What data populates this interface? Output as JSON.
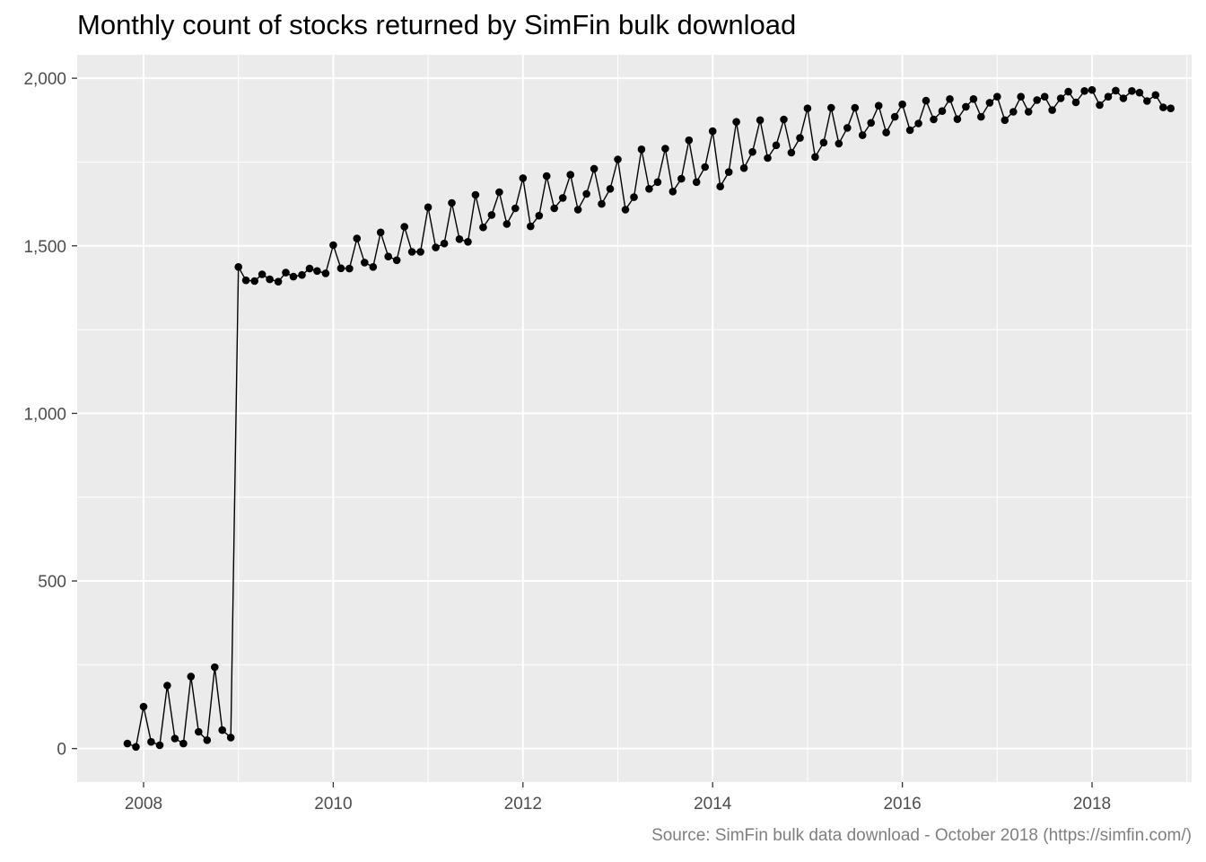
{
  "chart_data": {
    "type": "line",
    "title": "Monthly count of stocks returned by SimFin bulk download",
    "caption": "Source: SimFin bulk data download - October 2018 (https://simfin.com/)",
    "xlabel": "",
    "ylabel": "",
    "xlim": [
      2007.3,
      2019.05
    ],
    "ylim": [
      -100,
      2070
    ],
    "x_ticks": [
      {
        "value": 2008,
        "label": "2008"
      },
      {
        "value": 2010,
        "label": "2010"
      },
      {
        "value": 2012,
        "label": "2012"
      },
      {
        "value": 2014,
        "label": "2014"
      },
      {
        "value": 2016,
        "label": "2016"
      },
      {
        "value": 2018,
        "label": "2018"
      }
    ],
    "y_ticks": [
      {
        "value": 0,
        "label": "0"
      },
      {
        "value": 500,
        "label": "500"
      },
      {
        "value": 1000,
        "label": "1,000"
      },
      {
        "value": 1500,
        "label": "1,500"
      },
      {
        "value": 2000,
        "label": "2,000"
      }
    ],
    "grid": true,
    "series": [
      {
        "points": [
          [
            2007.83,
            15
          ],
          [
            2007.92,
            5
          ],
          [
            2008.0,
            125
          ],
          [
            2008.08,
            20
          ],
          [
            2008.17,
            10
          ],
          [
            2008.25,
            188
          ],
          [
            2008.33,
            30
          ],
          [
            2008.42,
            15
          ],
          [
            2008.5,
            215
          ],
          [
            2008.58,
            50
          ],
          [
            2008.67,
            25
          ],
          [
            2008.75,
            243
          ],
          [
            2008.83,
            55
          ],
          [
            2008.92,
            33
          ],
          [
            2009.0,
            1437
          ],
          [
            2009.08,
            1397
          ],
          [
            2009.17,
            1395
          ],
          [
            2009.25,
            1415
          ],
          [
            2009.33,
            1400
          ],
          [
            2009.42,
            1393
          ],
          [
            2009.5,
            1420
          ],
          [
            2009.58,
            1408
          ],
          [
            2009.67,
            1413
          ],
          [
            2009.75,
            1432
          ],
          [
            2009.83,
            1425
          ],
          [
            2009.92,
            1418
          ],
          [
            2010.0,
            1502
          ],
          [
            2010.08,
            1433
          ],
          [
            2010.17,
            1432
          ],
          [
            2010.25,
            1522
          ],
          [
            2010.33,
            1450
          ],
          [
            2010.42,
            1437
          ],
          [
            2010.5,
            1540
          ],
          [
            2010.58,
            1468
          ],
          [
            2010.67,
            1457
          ],
          [
            2010.75,
            1557
          ],
          [
            2010.83,
            1482
          ],
          [
            2010.92,
            1482
          ],
          [
            2011.0,
            1615
          ],
          [
            2011.08,
            1495
          ],
          [
            2011.17,
            1507
          ],
          [
            2011.25,
            1628
          ],
          [
            2011.33,
            1520
          ],
          [
            2011.42,
            1512
          ],
          [
            2011.5,
            1652
          ],
          [
            2011.58,
            1555
          ],
          [
            2011.67,
            1592
          ],
          [
            2011.75,
            1660
          ],
          [
            2011.83,
            1565
          ],
          [
            2011.92,
            1612
          ],
          [
            2012.0,
            1702
          ],
          [
            2012.08,
            1558
          ],
          [
            2012.17,
            1590
          ],
          [
            2012.25,
            1708
          ],
          [
            2012.33,
            1612
          ],
          [
            2012.42,
            1643
          ],
          [
            2012.5,
            1712
          ],
          [
            2012.58,
            1608
          ],
          [
            2012.67,
            1655
          ],
          [
            2012.75,
            1730
          ],
          [
            2012.83,
            1625
          ],
          [
            2012.92,
            1670
          ],
          [
            2013.0,
            1758
          ],
          [
            2013.08,
            1608
          ],
          [
            2013.17,
            1645
          ],
          [
            2013.25,
            1788
          ],
          [
            2013.33,
            1670
          ],
          [
            2013.42,
            1690
          ],
          [
            2013.5,
            1790
          ],
          [
            2013.58,
            1662
          ],
          [
            2013.67,
            1700
          ],
          [
            2013.75,
            1815
          ],
          [
            2013.83,
            1690
          ],
          [
            2013.92,
            1735
          ],
          [
            2014.0,
            1842
          ],
          [
            2014.08,
            1677
          ],
          [
            2014.17,
            1720
          ],
          [
            2014.25,
            1870
          ],
          [
            2014.33,
            1732
          ],
          [
            2014.42,
            1780
          ],
          [
            2014.5,
            1875
          ],
          [
            2014.58,
            1762
          ],
          [
            2014.67,
            1800
          ],
          [
            2014.75,
            1877
          ],
          [
            2014.83,
            1778
          ],
          [
            2014.92,
            1822
          ],
          [
            2015.0,
            1910
          ],
          [
            2015.08,
            1765
          ],
          [
            2015.17,
            1808
          ],
          [
            2015.25,
            1912
          ],
          [
            2015.33,
            1805
          ],
          [
            2015.42,
            1852
          ],
          [
            2015.5,
            1912
          ],
          [
            2015.58,
            1830
          ],
          [
            2015.67,
            1867
          ],
          [
            2015.75,
            1918
          ],
          [
            2015.83,
            1838
          ],
          [
            2015.92,
            1885
          ],
          [
            2016.0,
            1922
          ],
          [
            2016.08,
            1845
          ],
          [
            2016.17,
            1865
          ],
          [
            2016.25,
            1933
          ],
          [
            2016.33,
            1877
          ],
          [
            2016.42,
            1902
          ],
          [
            2016.5,
            1938
          ],
          [
            2016.58,
            1878
          ],
          [
            2016.67,
            1915
          ],
          [
            2016.75,
            1938
          ],
          [
            2016.83,
            1885
          ],
          [
            2016.92,
            1927
          ],
          [
            2017.0,
            1945
          ],
          [
            2017.08,
            1875
          ],
          [
            2017.17,
            1900
          ],
          [
            2017.25,
            1945
          ],
          [
            2017.33,
            1900
          ],
          [
            2017.42,
            1935
          ],
          [
            2017.5,
            1945
          ],
          [
            2017.58,
            1905
          ],
          [
            2017.67,
            1940
          ],
          [
            2017.75,
            1960
          ],
          [
            2017.83,
            1928
          ],
          [
            2017.92,
            1962
          ],
          [
            2018.0,
            1965
          ],
          [
            2018.08,
            1920
          ],
          [
            2018.17,
            1945
          ],
          [
            2018.25,
            1963
          ],
          [
            2018.33,
            1940
          ],
          [
            2018.42,
            1962
          ],
          [
            2018.5,
            1957
          ],
          [
            2018.58,
            1932
          ],
          [
            2018.67,
            1950
          ],
          [
            2018.75,
            1913
          ],
          [
            2018.83,
            1910
          ]
        ]
      }
    ]
  }
}
